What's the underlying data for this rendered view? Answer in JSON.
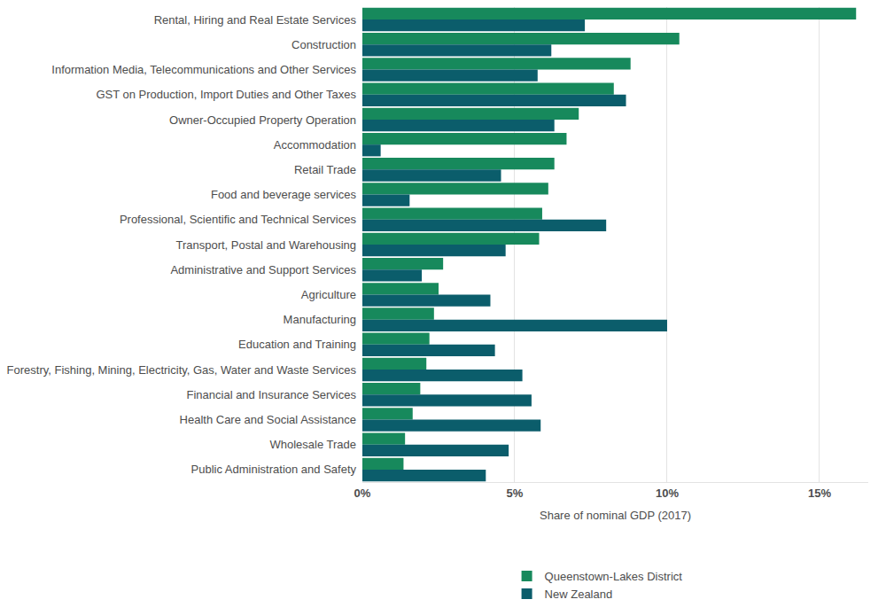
{
  "chart_data": {
    "type": "bar",
    "orientation": "horizontal",
    "categories": [
      "Rental, Hiring and Real Estate Services",
      "Construction",
      "Information Media, Telecommunications and Other Services",
      "GST on Production, Import Duties and Other Taxes",
      "Owner-Occupied Property Operation",
      "Accommodation",
      "Retail Trade",
      "Food and beverage services",
      "Professional, Scientific and Technical Services",
      "Transport, Postal and Warehousing",
      "Administrative and Support Services",
      "Agriculture",
      "Manufacturing",
      "Education and Training",
      "Forestry, Fishing, Mining, Electricity, Gas, Water and Waste Services",
      "Financial and Insurance Services",
      "Health Care and Social Assistance",
      "Wholesale Trade",
      "Public Administration and Safety"
    ],
    "series": [
      {
        "name": "Queenstown-Lakes District",
        "color": "#17895c",
        "values": [
          16.2,
          10.4,
          8.8,
          8.25,
          7.1,
          6.7,
          6.3,
          6.1,
          5.9,
          5.8,
          2.65,
          2.5,
          2.35,
          2.2,
          2.1,
          1.9,
          1.65,
          1.4,
          1.35
        ]
      },
      {
        "name": "New Zealand",
        "color": "#0b5d6b",
        "values": [
          7.3,
          6.2,
          5.75,
          8.65,
          6.3,
          0.6,
          4.55,
          1.55,
          8.0,
          4.7,
          1.95,
          4.2,
          10.0,
          4.35,
          5.25,
          5.55,
          5.85,
          4.8,
          4.05
        ]
      }
    ],
    "xlabel": "Share of nominal GDP (2017)",
    "xlim": [
      0,
      16.6
    ],
    "xticks": [
      {
        "value": 0,
        "label": "0%"
      },
      {
        "value": 5,
        "label": "5%"
      },
      {
        "value": 10,
        "label": "10%"
      },
      {
        "value": 15,
        "label": "15%"
      }
    ],
    "grid": true,
    "legend": "bottom"
  }
}
